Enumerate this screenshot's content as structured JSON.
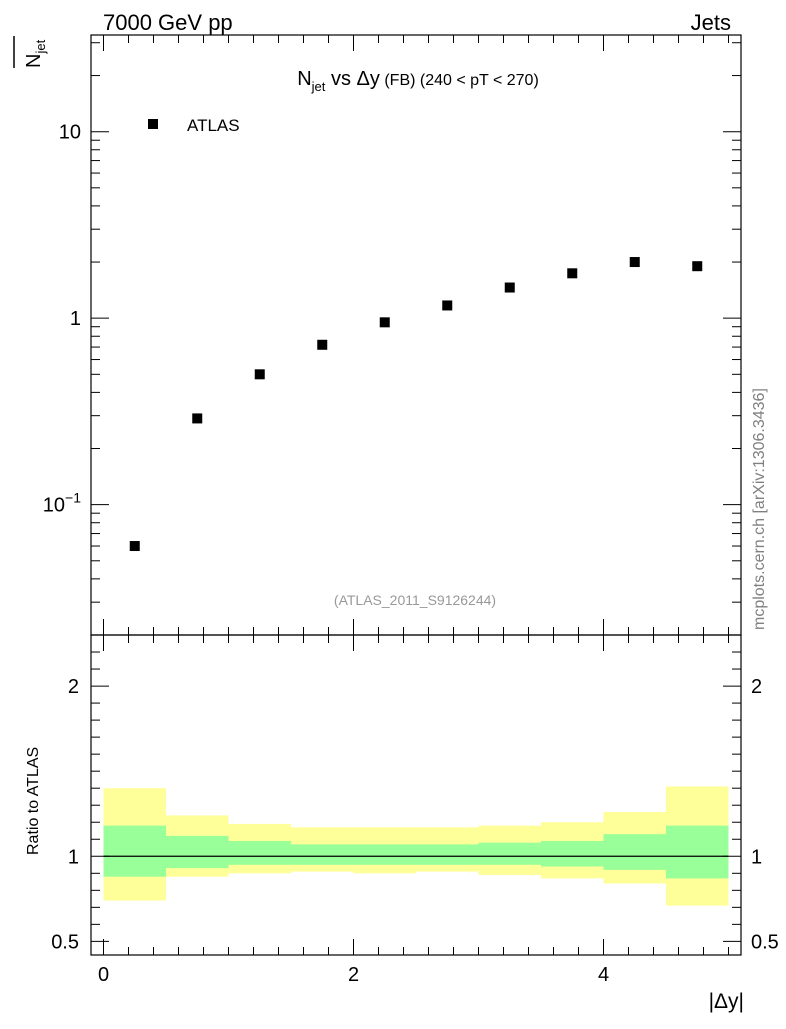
{
  "header": {
    "left": "7000 GeV pp",
    "right": "Jets"
  },
  "watermark": {
    "text": "mcplots.cern.ch [arXiv:1306.3436]",
    "color": "#808080"
  },
  "analysis_id": {
    "text": "(ATLAS_2011_S9126244)",
    "color": "#999999"
  },
  "colors": {
    "band_outer": "#ffff99",
    "band_inner": "#99ff99",
    "markers": "#000000"
  },
  "chart_data": [
    {
      "type": "scatter",
      "title": {
        "main": "N",
        "main_sub": "jet",
        "mid": " vs Δy",
        "small": " (FB)",
        "range": " (240 < pT < 270)"
      },
      "ylabel": {
        "main": "N",
        "sub": "jet"
      },
      "y_scale": "log",
      "ylim": [
        0.02,
        33
      ],
      "xlim": [
        -0.1,
        5.1
      ],
      "y_ticks": [
        {
          "value": 0.1,
          "base": "10",
          "exp": "−1"
        },
        {
          "value": 1,
          "label": "1"
        },
        {
          "value": 10,
          "label": "10"
        }
      ],
      "legend": {
        "position": "top-left",
        "entries": [
          "ATLAS"
        ]
      },
      "series": [
        {
          "name": "ATLAS",
          "marker": "square",
          "x": [
            0.25,
            0.75,
            1.25,
            1.75,
            2.25,
            2.75,
            3.25,
            3.75,
            4.25,
            4.75
          ],
          "y": [
            0.06,
            0.29,
            0.5,
            0.72,
            0.95,
            1.17,
            1.46,
            1.74,
            2.0,
            1.9
          ]
        }
      ]
    },
    {
      "type": "area",
      "ylabel": "Ratio to ATLAS",
      "xlabel": "|Δy|",
      "ylim": [
        0.42,
        2.3
      ],
      "xlim": [
        -0.1,
        5.1
      ],
      "x_ticks": [
        {
          "value": 0,
          "label": "0"
        },
        {
          "value": 2,
          "label": "2"
        },
        {
          "value": 4,
          "label": "4"
        }
      ],
      "y_ticks": [
        {
          "value": 0.5,
          "label": "0.5"
        },
        {
          "value": 1,
          "label": "1"
        },
        {
          "value": 2,
          "label": "2"
        }
      ],
      "bins": [
        0,
        0.5,
        1,
        1.5,
        2,
        2.5,
        3,
        3.5,
        4,
        4.5,
        5
      ],
      "outer_band": {
        "low": [
          0.74,
          0.88,
          0.9,
          0.91,
          0.9,
          0.91,
          0.89,
          0.87,
          0.84,
          0.71
        ],
        "high": [
          1.4,
          1.24,
          1.19,
          1.17,
          1.17,
          1.17,
          1.18,
          1.2,
          1.26,
          1.41
        ]
      },
      "inner_band": {
        "low": [
          0.88,
          0.93,
          0.95,
          0.95,
          0.95,
          0.95,
          0.95,
          0.94,
          0.92,
          0.87
        ],
        "high": [
          1.18,
          1.12,
          1.09,
          1.07,
          1.07,
          1.07,
          1.08,
          1.09,
          1.13,
          1.18
        ]
      },
      "reference_line": 1
    }
  ]
}
